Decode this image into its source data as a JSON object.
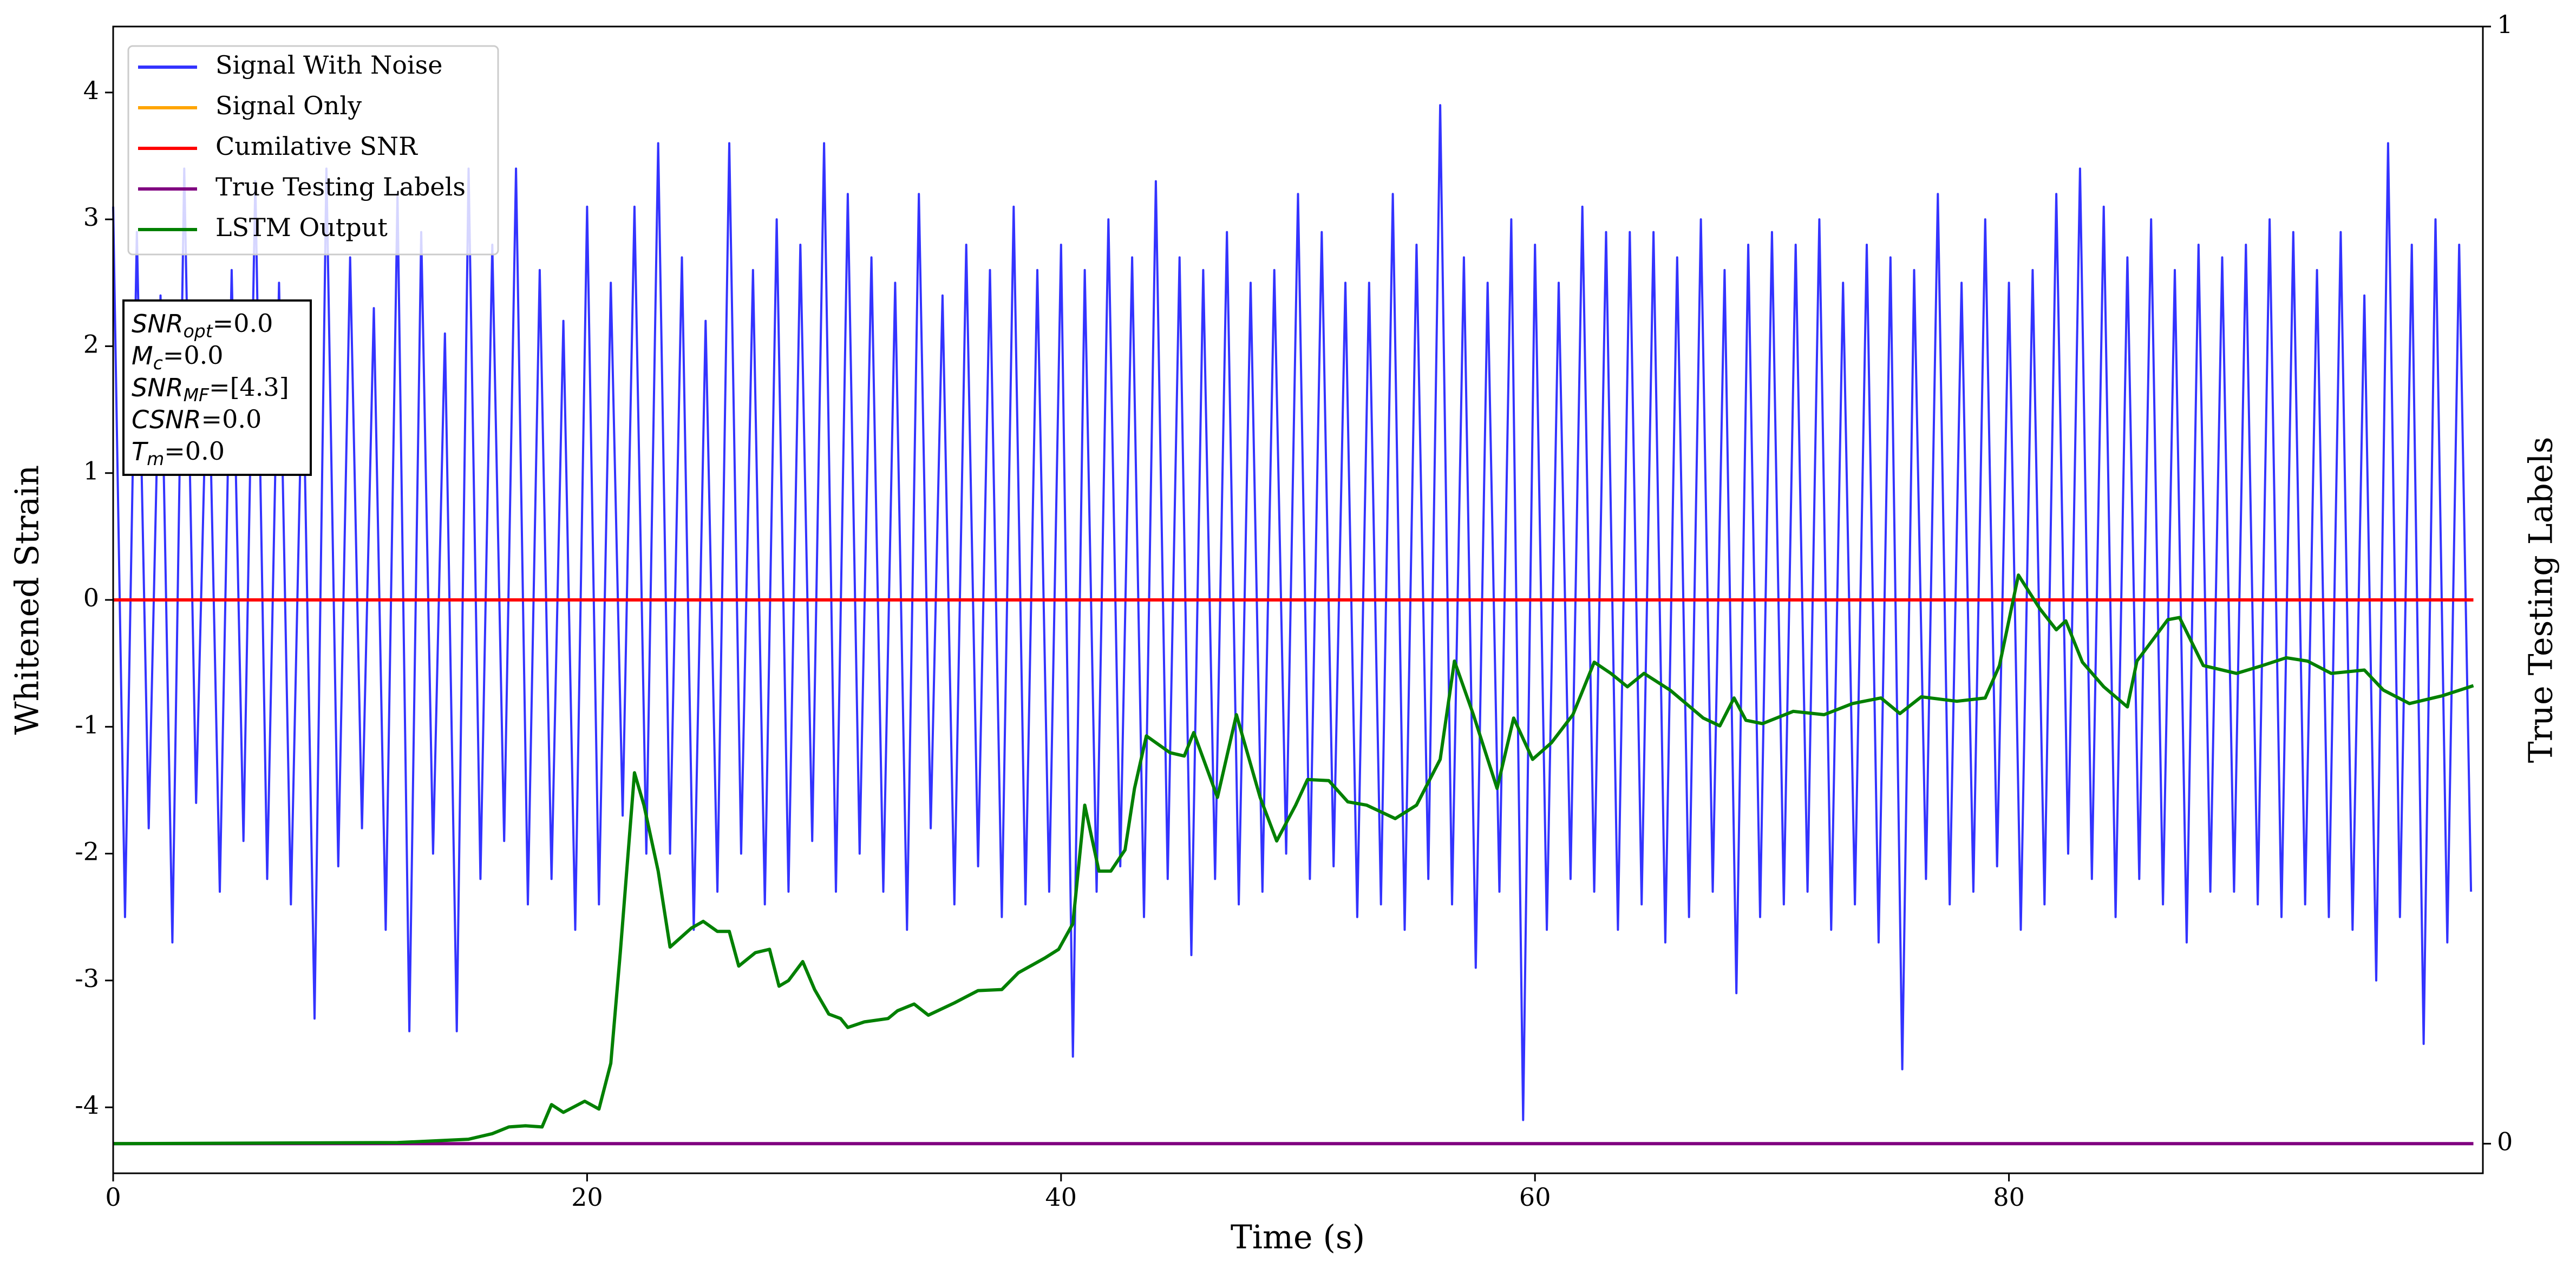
{
  "chart_data": {
    "type": "line",
    "xlabel": "Time (s)",
    "ylabel": "Whitened Strain",
    "y2label": "True Testing Labels",
    "xlim": [
      0,
      100
    ],
    "xticks": [
      0,
      20,
      40,
      60,
      80
    ],
    "ylim": [
      -4.52,
      4.52
    ],
    "yticks": [
      -4,
      -3,
      -2,
      -1,
      0,
      1,
      2,
      3,
      4
    ],
    "y2lim": [
      -0.0265,
      1
    ],
    "y2ticks": [
      0,
      1
    ],
    "grid": false,
    "legend": "upper left",
    "annotations": [
      {
        "name": "SNR",
        "sub": "opt",
        "text": "=0.0"
      },
      {
        "name": "M",
        "sub": "c",
        "text": "=0.0"
      },
      {
        "name": "SNR",
        "sub": "MF",
        "text": "=[4.3]"
      },
      {
        "name": "CSNR",
        "text": "=0.0"
      },
      {
        "name": "T",
        "sub": "m",
        "text": "=0.0"
      }
    ],
    "series": [
      {
        "name": "Signal With Noise",
        "color": "#3333ff",
        "x": [
          0,
          0.5,
          1,
          1.5,
          2,
          2.5,
          3,
          3.5,
          4,
          4.5,
          5,
          5.5,
          6,
          6.5,
          7,
          7.5,
          8,
          8.5,
          9,
          9.5,
          10,
          10.5,
          11,
          11.5,
          12,
          12.5,
          13,
          13.5,
          14,
          14.5,
          15,
          15.5,
          16,
          16.5,
          17,
          17.5,
          18,
          18.5,
          19,
          19.5,
          20,
          20.5,
          21,
          21.5,
          22,
          22.5,
          23,
          23.5,
          24,
          24.5,
          25,
          25.5,
          26,
          26.5,
          27,
          27.5,
          28,
          28.5,
          29,
          29.5,
          30,
          30.5,
          31,
          31.5,
          32,
          32.5,
          33,
          33.5,
          34,
          34.5,
          35,
          35.5,
          36,
          36.5,
          37,
          37.5,
          38,
          38.5,
          39,
          39.5,
          40,
          40.5,
          41,
          41.5,
          42,
          42.5,
          43,
          43.5,
          44,
          44.5,
          45,
          45.5,
          46,
          46.5,
          47,
          47.5,
          48,
          48.5,
          49,
          49.5,
          50,
          50.5,
          51,
          51.5,
          52,
          52.5,
          53,
          53.5,
          54,
          54.5,
          55,
          55.5,
          56,
          56.5,
          57,
          57.5,
          58,
          58.5,
          59,
          59.5,
          60,
          60.5,
          61,
          61.5,
          62,
          62.5,
          63,
          63.5,
          64,
          64.5,
          65,
          65.5,
          66,
          66.5,
          67,
          67.5,
          68,
          68.5,
          69,
          69.5,
          70,
          70.5,
          71,
          71.5,
          72,
          72.5,
          73,
          73.5,
          74,
          74.5,
          75,
          75.5,
          76,
          76.5,
          77,
          77.5,
          78,
          78.5,
          79,
          79.5,
          80,
          80.5,
          81,
          81.5,
          82,
          82.5,
          83,
          83.5,
          84,
          84.5,
          85,
          85.5,
          86,
          86.5,
          87,
          87.5,
          88,
          88.5,
          89,
          89.5,
          90,
          90.5,
          91,
          91.5,
          92,
          92.5,
          93,
          93.5,
          94,
          94.5,
          95,
          95.5,
          96,
          96.5,
          97,
          97.5,
          98,
          98.5,
          99,
          99.5
        ],
        "values": [
          3.1,
          -2.5,
          2.9,
          -1.8,
          2.4,
          -2.7,
          3.4,
          -1.6,
          2.2,
          -2.3,
          2.6,
          -1.9,
          3.3,
          -2.2,
          2.5,
          -2.4,
          2.0,
          -3.3,
          3.4,
          -2.1,
          2.7,
          -1.8,
          2.3,
          -2.6,
          3.2,
          -3.4,
          2.9,
          -2.0,
          2.1,
          -3.4,
          3.4,
          -2.2,
          2.8,
          -1.9,
          3.4,
          -2.4,
          2.6,
          -2.2,
          2.2,
          -2.6,
          3.1,
          -2.4,
          2.5,
          -1.7,
          3.1,
          -2.0,
          3.6,
          -2.0,
          2.7,
          -2.6,
          2.2,
          -2.3,
          3.6,
          -2.0,
          2.6,
          -2.4,
          3.0,
          -2.3,
          2.8,
          -1.9,
          3.6,
          -2.3,
          3.2,
          -2.0,
          2.7,
          -2.3,
          2.5,
          -2.6,
          3.2,
          -1.8,
          2.4,
          -2.4,
          2.8,
          -2.1,
          2.6,
          -2.5,
          3.1,
          -2.4,
          2.6,
          -2.3,
          2.8,
          -3.6,
          2.6,
          -2.3,
          3.0,
          -2.1,
          2.7,
          -2.5,
          3.3,
          -2.2,
          2.7,
          -2.8,
          2.6,
          -2.2,
          2.9,
          -2.4,
          2.5,
          -2.3,
          2.6,
          -2.0,
          3.2,
          -2.2,
          2.9,
          -2.1,
          2.5,
          -2.5,
          2.5,
          -2.4,
          3.2,
          -2.6,
          2.8,
          -2.2,
          3.9,
          -2.4,
          2.7,
          -2.9,
          2.5,
          -2.3,
          3.0,
          -4.1,
          2.8,
          -2.6,
          2.5,
          -2.2,
          3.1,
          -2.3,
          2.9,
          -2.6,
          2.9,
          -2.4,
          2.9,
          -2.7,
          2.7,
          -2.5,
          3.0,
          -2.3,
          2.6,
          -3.1,
          2.8,
          -2.5,
          2.9,
          -2.4,
          2.8,
          -2.3,
          3.0,
          -2.6,
          2.5,
          -2.4,
          2.8,
          -2.7,
          2.7,
          -3.7,
          2.6,
          -2.2,
          3.2,
          -2.4,
          2.5,
          -2.3,
          3.0,
          -2.1,
          2.5,
          -2.6,
          2.6,
          -2.4,
          3.2,
          -2.0,
          3.4,
          -2.2,
          3.1,
          -2.5,
          2.7,
          -2.2,
          3.0,
          -2.4,
          2.6,
          -2.7,
          2.8,
          -2.3,
          2.7,
          -2.3,
          2.8,
          -2.4,
          3.0,
          -2.5,
          2.9,
          -2.4,
          2.6,
          -2.5,
          2.9,
          -2.6,
          2.4,
          -3.0,
          3.6,
          -2.5,
          2.8,
          -3.5,
          3.0,
          -2.7,
          2.8,
          -2.3
        ]
      },
      {
        "name": "Signal Only",
        "color": "#ffa500",
        "x": [
          0,
          99.6
        ],
        "values": [
          0,
          0
        ]
      },
      {
        "name": "Cumilative SNR",
        "color": "#ff0000",
        "x": [
          0,
          99.6
        ],
        "values": [
          0,
          0
        ]
      },
      {
        "name": "True Testing Labels",
        "color": "#800080",
        "axis": "y2",
        "x": [
          0,
          99.6
        ],
        "values": [
          0,
          0
        ]
      },
      {
        "name": "LSTM Output",
        "color": "#008000",
        "axis": "y2",
        "x": [
          0,
          12,
          15,
          16,
          16.7,
          17.4,
          18.1,
          18.5,
          19,
          19.9,
          20.5,
          21,
          21.4,
          22,
          22.4,
          23,
          23.5,
          24.4,
          24.9,
          25.5,
          26,
          26.4,
          27.1,
          27.7,
          28.1,
          28.5,
          29.1,
          29.6,
          30.2,
          30.7,
          31,
          31.7,
          32.7,
          33.1,
          33.8,
          34.4,
          35.5,
          36.5,
          37.5,
          38.2,
          39.3,
          39.9,
          40.5,
          41,
          41.6,
          42.1,
          42.7,
          43.1,
          43.6,
          44.6,
          45.2,
          45.6,
          46.6,
          47.4,
          48.4,
          49.1,
          49.9,
          50.4,
          51.3,
          52.1,
          52.9,
          54.1,
          55,
          56,
          56.6,
          57.4,
          58.4,
          59.1,
          59.9,
          60.7,
          61.6,
          62.5,
          63.2,
          63.9,
          64.6,
          65.7,
          67.1,
          67.8,
          68.4,
          68.9,
          69.6,
          70.9,
          72.2,
          73.4,
          74.6,
          75.4,
          76.3,
          77.8,
          79,
          79.6,
          80.4,
          81.3,
          82,
          82.4,
          83.1,
          84,
          85,
          85.4,
          86.7,
          87.2,
          88.2,
          89.6,
          90.7,
          91.7,
          92.6,
          93.6,
          95,
          95.8,
          96.9,
          98.3,
          99.6
        ],
        "values": [
          0,
          0.001,
          0.004,
          0.009,
          0.015,
          0.016,
          0.015,
          0.035,
          0.028,
          0.038,
          0.031,
          0.072,
          0.171,
          0.332,
          0.303,
          0.244,
          0.176,
          0.193,
          0.199,
          0.19,
          0.19,
          0.159,
          0.171,
          0.174,
          0.141,
          0.146,
          0.163,
          0.138,
          0.116,
          0.112,
          0.104,
          0.109,
          0.112,
          0.119,
          0.125,
          0.115,
          0.126,
          0.137,
          0.138,
          0.153,
          0.166,
          0.174,
          0.197,
          0.303,
          0.244,
          0.244,
          0.263,
          0.318,
          0.365,
          0.35,
          0.347,
          0.368,
          0.31,
          0.384,
          0.31,
          0.271,
          0.303,
          0.326,
          0.325,
          0.306,
          0.303,
          0.291,
          0.303,
          0.344,
          0.432,
          0.384,
          0.318,
          0.381,
          0.344,
          0.359,
          0.384,
          0.431,
          0.421,
          0.409,
          0.421,
          0.406,
          0.381,
          0.374,
          0.399,
          0.379,
          0.376,
          0.387,
          0.384,
          0.394,
          0.399,
          0.385,
          0.4,
          0.396,
          0.399,
          0.428,
          0.509,
          0.479,
          0.46,
          0.468,
          0.431,
          0.409,
          0.391,
          0.432,
          0.469,
          0.471,
          0.428,
          0.421,
          0.428,
          0.435,
          0.432,
          0.421,
          0.424,
          0.406,
          0.394,
          0.401,
          0.41
        ]
      }
    ]
  }
}
